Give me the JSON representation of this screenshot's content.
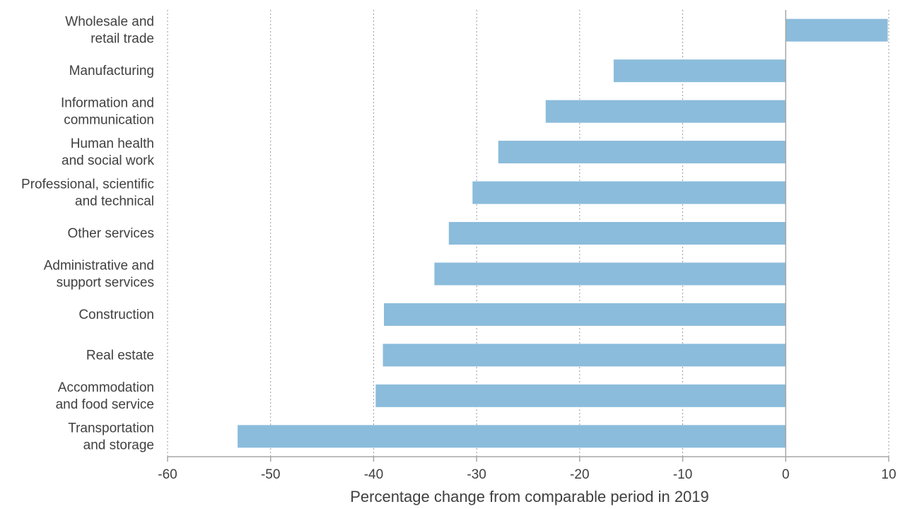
{
  "chart_data": {
    "type": "bar",
    "orientation": "horizontal",
    "categories": [
      [
        "Wholesale and",
        "retail trade"
      ],
      [
        "Manufacturing"
      ],
      [
        "Information and",
        "communication"
      ],
      [
        "Human health",
        "and social work"
      ],
      [
        "Professional, scientific",
        "and technical"
      ],
      [
        "Other services"
      ],
      [
        "Administrative and",
        "support services"
      ],
      [
        "Construction"
      ],
      [
        "Real estate"
      ],
      [
        "Accommodation",
        "and food service"
      ],
      [
        "Transportation",
        "and storage"
      ]
    ],
    "values": [
      9.9,
      -16.7,
      -23.3,
      -27.9,
      -30.4,
      -32.7,
      -34.1,
      -39.0,
      -39.1,
      -39.8,
      -53.2
    ],
    "xlim": [
      -60,
      10
    ],
    "xticks": [
      -60,
      -50,
      -40,
      -30,
      -20,
      -10,
      0,
      10
    ],
    "xlabel": "Percentage change from comparable period in 2019",
    "ylabel": "",
    "title": "",
    "grid": "vertical-dotted",
    "legend": "none",
    "bar_color": "#8bbcdb"
  }
}
